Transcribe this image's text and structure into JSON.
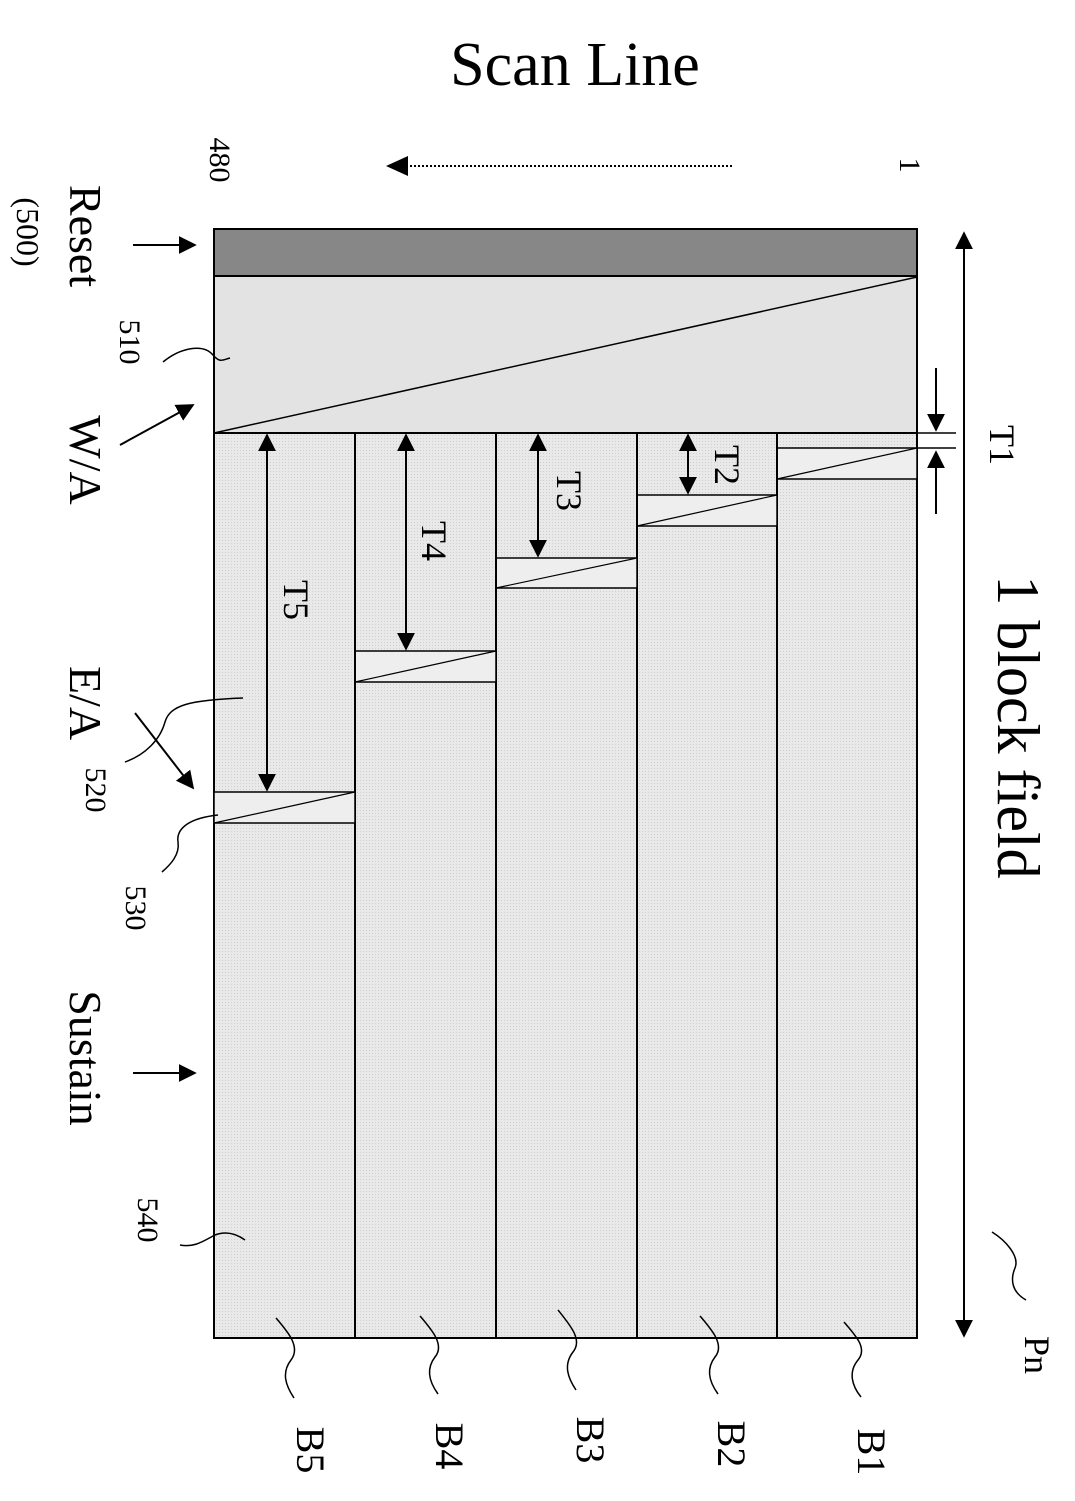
{
  "title": "Scan Line",
  "scan_start": "1",
  "scan_end": "480",
  "field_label": "1 block field",
  "pn_label": "Pn",
  "reset_label": "Reset",
  "reset_ref": "(500)",
  "ref_510": "510",
  "wa_label": "W/A",
  "ea_label": "E/A",
  "ref_520": "520",
  "ref_530": "530",
  "sustain_label": "Sustain",
  "ref_540": "540",
  "intervals": [
    "T1",
    "T2",
    "T3",
    "T4",
    "T5"
  ],
  "blocks": [
    "B1",
    "B2",
    "B3",
    "B4",
    "B5"
  ],
  "colors": {
    "reset_fill": "#878787",
    "wa_fill": "#e3e3e3",
    "sustain_fill": "#e8e8e8",
    "line": "#000000"
  }
}
